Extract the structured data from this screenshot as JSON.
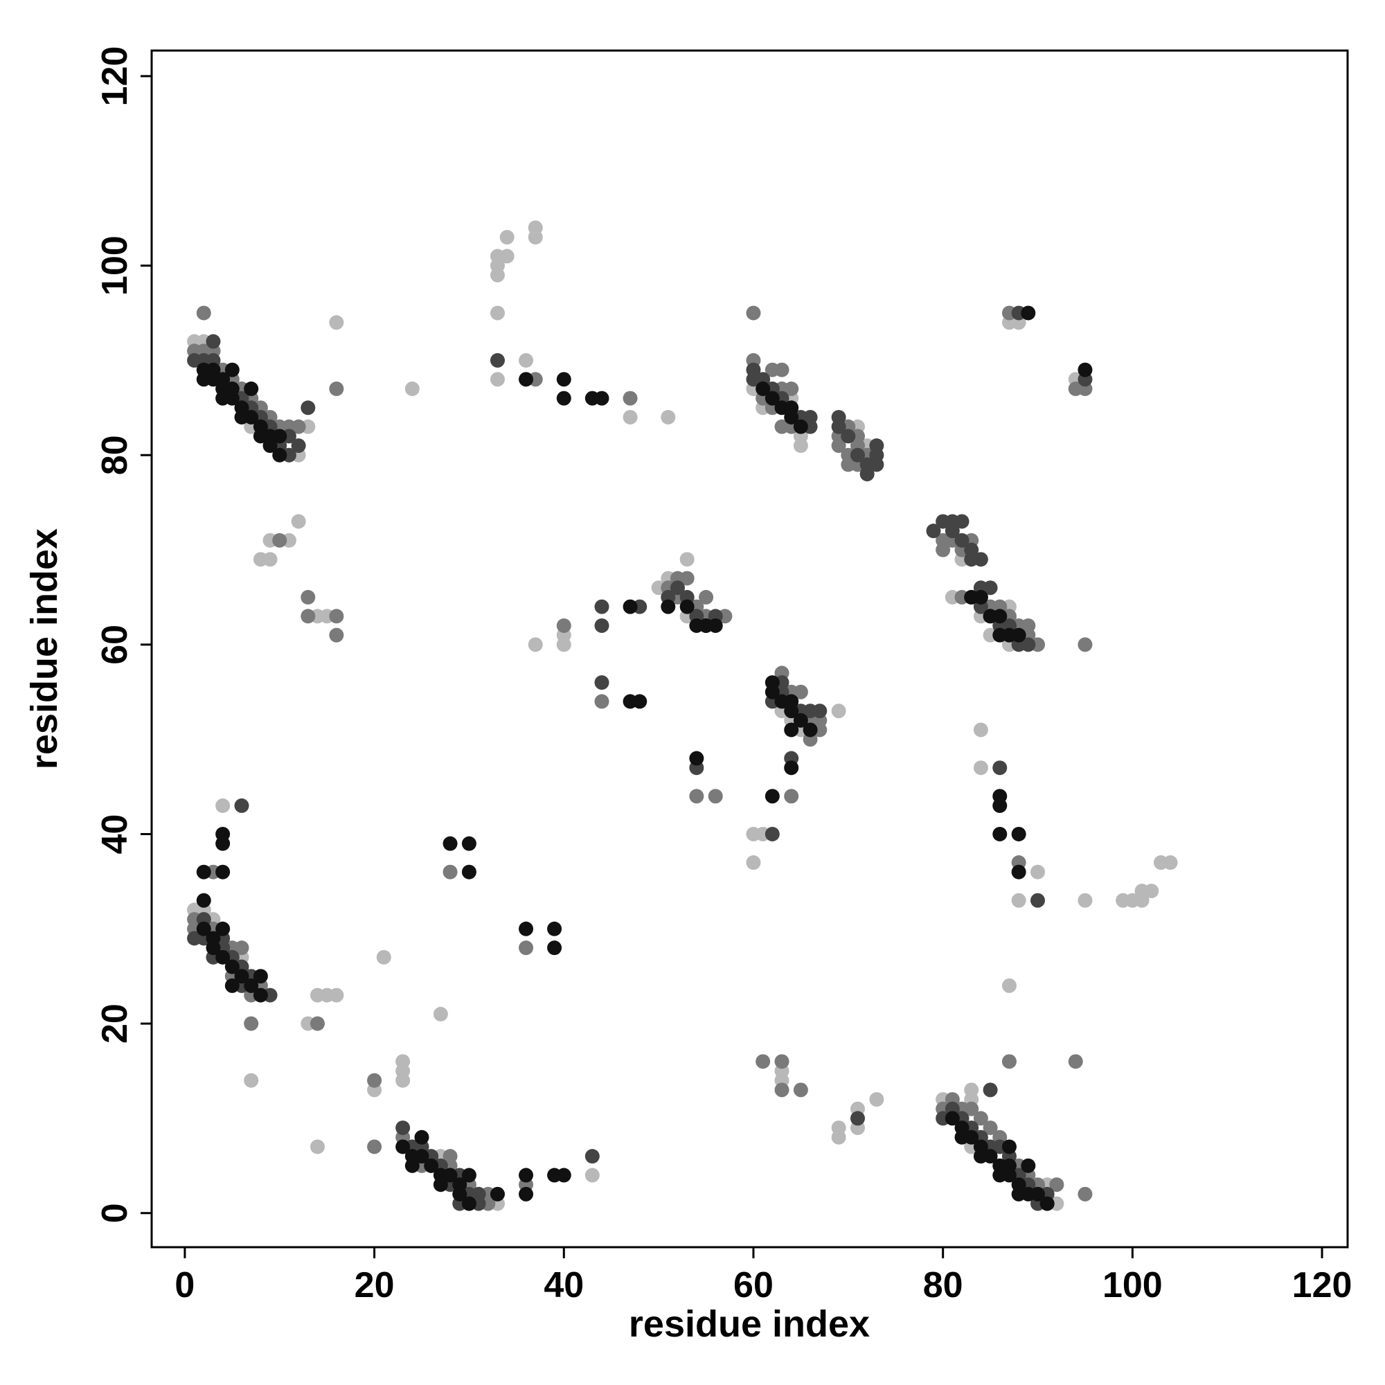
{
  "chart_data": {
    "type": "scatter",
    "x_label": "residue index",
    "y_label": "residue index",
    "xlim": [
      -3.5,
      122.7
    ],
    "ylim": [
      -3.6,
      122.7
    ],
    "xticks": [
      0,
      20,
      40,
      60,
      80,
      100,
      120
    ],
    "yticks": [
      0,
      20,
      40,
      60,
      80,
      100,
      120
    ],
    "series": [
      {
        "color": "#b8b8b8",
        "x": [
          1,
          2,
          3,
          7,
          9,
          11,
          12,
          13,
          16,
          24,
          8,
          9,
          9,
          11,
          12,
          14,
          15,
          33,
          33,
          33,
          33,
          34,
          34,
          37,
          37,
          33,
          36,
          47,
          51,
          60,
          61,
          64,
          65,
          65,
          70,
          71,
          72,
          81,
          82,
          84,
          85,
          87,
          87,
          88,
          50,
          51,
          53,
          53,
          37,
          40,
          40,
          63,
          64,
          69,
          65,
          60,
          61,
          60,
          84,
          84,
          88,
          90,
          95,
          99,
          100,
          101,
          101,
          102,
          103,
          104,
          87,
          88,
          94,
          1,
          2,
          3,
          6,
          4,
          7,
          13,
          14,
          15,
          16,
          14,
          20,
          21,
          27,
          23,
          23,
          23,
          25,
          27,
          33,
          43,
          31,
          63,
          63,
          69,
          69,
          71,
          71,
          73,
          80,
          81,
          83,
          83,
          84,
          83,
          90,
          92,
          91,
          87
        ],
        "y": [
          92,
          92,
          91,
          83,
          81,
          80,
          80,
          83,
          94,
          87,
          69,
          69,
          71,
          71,
          73,
          63,
          63,
          95,
          99,
          100,
          101,
          101,
          103,
          104,
          103,
          88,
          90,
          84,
          84,
          87,
          85,
          86,
          82,
          81,
          83,
          83,
          81,
          65,
          69,
          63,
          61,
          64,
          60,
          61,
          66,
          67,
          69,
          63,
          60,
          61,
          60,
          53,
          52,
          53,
          51,
          40,
          40,
          37,
          51,
          47,
          33,
          36,
          33,
          33,
          33,
          33,
          34,
          34,
          37,
          37,
          94,
          94,
          88,
          32,
          32,
          31,
          27,
          43,
          14,
          20,
          23,
          23,
          23,
          7,
          13,
          27,
          21,
          16,
          15,
          14,
          7,
          6,
          1,
          4,
          2,
          15,
          14,
          9,
          8,
          11,
          9,
          12,
          12,
          11,
          13,
          12,
          8,
          7,
          2,
          1,
          3,
          24
        ]
      },
      {
        "color": "#7a7a7a",
        "x": [
          1,
          2,
          2,
          3,
          4,
          5,
          6,
          7,
          8,
          9,
          10,
          11,
          12,
          16,
          10,
          13,
          13,
          16,
          16,
          37,
          47,
          60,
          60,
          61,
          62,
          63,
          64,
          62,
          63,
          64,
          63,
          69,
          69,
          70,
          70,
          71,
          71,
          72,
          70,
          71,
          80,
          80,
          81,
          82,
          83,
          84,
          85,
          86,
          87,
          88,
          89,
          89,
          90,
          82,
          95,
          51,
          52,
          53,
          52,
          54,
          55,
          57,
          55,
          40,
          44,
          54,
          56,
          63,
          64,
          65,
          66,
          67,
          67,
          66,
          64,
          88,
          87,
          94,
          95,
          1,
          2,
          1,
          3,
          5,
          6,
          5,
          7,
          8,
          7,
          3,
          14,
          20,
          20,
          28,
          36,
          23,
          25,
          26,
          28,
          28,
          30,
          32,
          32,
          36,
          61,
          63,
          63,
          65,
          80,
          81,
          83,
          84,
          85,
          86,
          88,
          89,
          90,
          92,
          87,
          95,
          91,
          82,
          94
        ],
        "y": [
          91,
          91,
          95,
          91,
          89,
          88,
          87,
          86,
          85,
          84,
          83,
          83,
          83,
          87,
          71,
          65,
          63,
          63,
          61,
          88,
          86,
          90,
          95,
          86,
          85,
          83,
          83,
          89,
          89,
          87,
          87,
          82,
          81,
          80,
          83,
          82,
          81,
          80,
          79,
          79,
          71,
          70,
          71,
          70,
          71,
          65,
          64,
          64,
          63,
          62,
          62,
          61,
          60,
          65,
          60,
          66,
          67,
          67,
          65,
          64,
          65,
          63,
          63,
          62,
          54,
          44,
          44,
          57,
          55,
          55,
          52,
          52,
          51,
          50,
          44,
          37,
          95,
          87,
          87,
          31,
          31,
          30,
          30,
          28,
          28,
          25,
          23,
          24,
          20,
          36,
          20,
          7,
          14,
          36,
          28,
          8,
          5,
          5,
          6,
          5,
          3,
          2,
          1,
          3,
          16,
          16,
          13,
          13,
          11,
          12,
          11,
          10,
          9,
          8,
          5,
          4,
          3,
          3,
          16,
          2,
          1,
          11,
          16
        ]
      },
      {
        "color": "#444444",
        "x": [
          2,
          3,
          3,
          6,
          7,
          8,
          9,
          10,
          11,
          11,
          12,
          13,
          1,
          33,
          60,
          60,
          61,
          62,
          63,
          65,
          66,
          66,
          69,
          69,
          70,
          71,
          72,
          73,
          73,
          73,
          72,
          79,
          80,
          81,
          82,
          81,
          82,
          83,
          83,
          84,
          84,
          85,
          83,
          84,
          85,
          86,
          87,
          87,
          88,
          89,
          51,
          52,
          53,
          54,
          55,
          56,
          44,
          44,
          48,
          44,
          54,
          62,
          63,
          63,
          65,
          66,
          67,
          64,
          62,
          86,
          90,
          88,
          95,
          6,
          1,
          2,
          3,
          4,
          5,
          6,
          7,
          9,
          2,
          4,
          6,
          23,
          24,
          25,
          26,
          27,
          28,
          29,
          30,
          31,
          31,
          43,
          29,
          71,
          80,
          81,
          82,
          83,
          84,
          85,
          86,
          87,
          88,
          89,
          90,
          91,
          85
        ],
        "y": [
          90,
          90,
          92,
          86,
          85,
          84,
          83,
          81,
          80,
          82,
          81,
          85,
          90,
          90,
          88,
          89,
          88,
          87,
          86,
          84,
          84,
          83,
          84,
          83,
          82,
          80,
          79,
          80,
          81,
          79,
          78,
          72,
          73,
          73,
          73,
          72,
          71,
          70,
          69,
          69,
          66,
          66,
          65,
          64,
          63,
          62,
          61,
          62,
          60,
          60,
          65,
          66,
          65,
          63,
          62,
          63,
          64,
          62,
          64,
          56,
          47,
          54,
          56,
          55,
          53,
          53,
          53,
          48,
          40,
          47,
          33,
          95,
          88,
          43,
          29,
          29,
          27,
          28,
          27,
          26,
          25,
          23,
          31,
          29,
          24,
          9,
          7,
          7,
          6,
          5,
          3,
          4,
          2,
          1,
          2,
          6,
          1,
          10,
          10,
          11,
          10,
          9,
          8,
          7,
          7,
          6,
          4,
          3,
          1,
          2,
          13
        ]
      },
      {
        "color": "#111111",
        "x": [
          2,
          2,
          3,
          4,
          4,
          5,
          5,
          6,
          6,
          7,
          7,
          8,
          8,
          9,
          9,
          10,
          10,
          3,
          4,
          5,
          36,
          40,
          40,
          43,
          44,
          61,
          62,
          63,
          64,
          64,
          65,
          83,
          84,
          85,
          86,
          86,
          87,
          88,
          51,
          53,
          54,
          55,
          56,
          47,
          47,
          48,
          54,
          62,
          62,
          63,
          64,
          64,
          65,
          66,
          64,
          62,
          64,
          86,
          86,
          86,
          88,
          88,
          89,
          95,
          2,
          2,
          3,
          3,
          4,
          4,
          5,
          5,
          6,
          7,
          8,
          8,
          2,
          4,
          4,
          4,
          28,
          30,
          30,
          36,
          39,
          39,
          23,
          24,
          24,
          25,
          25,
          26,
          27,
          27,
          28,
          29,
          29,
          30,
          30,
          33,
          36,
          36,
          39,
          40,
          81,
          82,
          82,
          83,
          84,
          84,
          85,
          86,
          86,
          87,
          87,
          87,
          88,
          88,
          89,
          89,
          90,
          91
        ],
        "y": [
          89,
          88,
          88,
          87,
          86,
          86,
          89,
          85,
          84,
          87,
          84,
          83,
          82,
          82,
          81,
          80,
          82,
          89,
          88,
          87,
          88,
          88,
          86,
          86,
          86,
          87,
          86,
          85,
          85,
          84,
          83,
          65,
          65,
          63,
          63,
          61,
          61,
          61,
          64,
          64,
          62,
          62,
          62,
          64,
          54,
          54,
          48,
          56,
          55,
          54,
          54,
          53,
          52,
          51,
          51,
          44,
          47,
          44,
          43,
          40,
          40,
          36,
          95,
          89,
          33,
          30,
          29,
          28,
          30,
          27,
          26,
          24,
          25,
          24,
          25,
          23,
          36,
          36,
          40,
          39,
          39,
          39,
          36,
          30,
          30,
          28,
          7,
          6,
          5,
          6,
          8,
          5,
          4,
          3,
          4,
          3,
          2,
          1,
          4,
          2,
          4,
          2,
          4,
          4,
          10,
          9,
          8,
          8,
          7,
          6,
          6,
          5,
          4,
          5,
          7,
          4,
          3,
          2,
          2,
          5,
          2,
          1
        ]
      }
    ]
  }
}
